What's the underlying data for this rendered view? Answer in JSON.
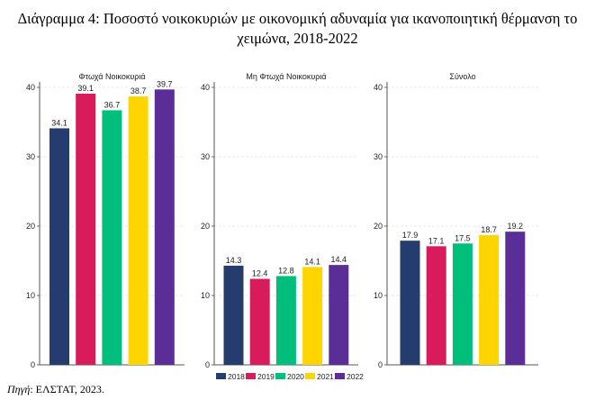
{
  "title_line1": "Διάγραμμα 4: Ποσοστό νοικοκυριών με οικονομική αδυναμία για ικανοποιητική θέρμανση το",
  "title_line2": "χειμώνα, 2018-2022",
  "source_label": "Πηγή",
  "source_text": ": ΕΛΣΤΑΤ, 2023.",
  "chart_data": {
    "type": "bar",
    "categories": [
      "2018",
      "2019",
      "2020",
      "2021",
      "2022"
    ],
    "colors": [
      "#253C6E",
      "#D81B5A",
      "#00BF7D",
      "#FFD500",
      "#5B2D96"
    ],
    "ylim": [
      0,
      40
    ],
    "yticks": [
      0,
      10,
      20,
      30,
      40
    ],
    "grid": true,
    "legend": "bottom",
    "panels": [
      {
        "title": "Φτωχά Νοικοκυριά",
        "values": [
          34.1,
          39.1,
          36.7,
          38.7,
          39.7
        ]
      },
      {
        "title": "Μη Φτωχά Νοικοκυριά",
        "values": [
          14.3,
          12.4,
          12.8,
          14.1,
          14.4
        ]
      },
      {
        "title": "Σύνολο",
        "values": [
          17.9,
          17.1,
          17.5,
          18.7,
          19.2
        ]
      }
    ]
  }
}
